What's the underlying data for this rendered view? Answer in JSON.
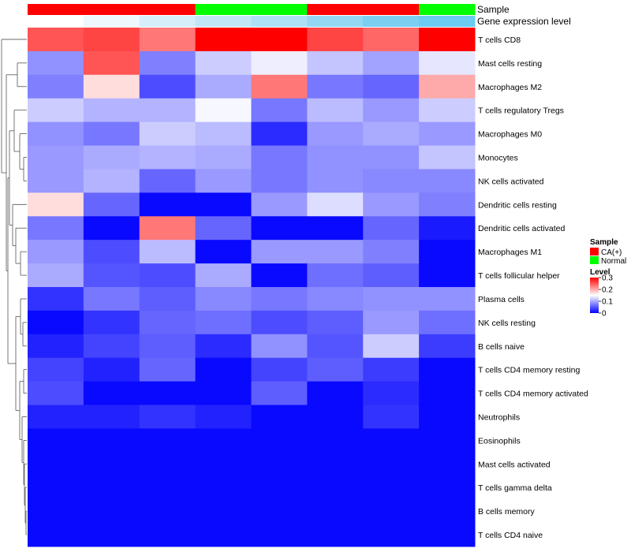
{
  "chart_data": {
    "type": "heatmap",
    "colors": {
      "low": "#0000ff",
      "mid": "#ffffff",
      "high": "#ff0000",
      "ca": "#ff0000",
      "normal": "#00ff00",
      "dendrogram": "#555555"
    },
    "annotation_rows": [
      {
        "label": "Sample",
        "colors": [
          "#ff0000",
          "#ff0000",
          "#ff0000",
          "#00ff00",
          "#00ff00",
          "#ff0000",
          "#ff0000",
          "#00ff00"
        ]
      },
      {
        "label": "Gene expression level",
        "colors": [
          "#ffffff",
          "#eef7fc",
          "#d6eef9",
          "#c1e6f6",
          "#aee0f5",
          "#93d7f3",
          "#7bcff1",
          "#6ccbf0"
        ]
      }
    ],
    "rows": [
      "T cells CD8",
      "Mast cells resting",
      "Macrophages M2",
      "T cells regulatory  Tregs",
      "Macrophages M0",
      "Monocytes",
      "NK cells activated",
      "Dendritic cells resting",
      "Dendritic cells activated",
      "Macrophages M1",
      "T cells follicular helper",
      "Plasma cells",
      "NK cells resting",
      "B cells naive",
      "T cells CD4 memory resting",
      "T cells CD4 memory activated",
      "Neutrophils",
      "Eosinophils",
      "Mast cells activated",
      "T cells gamma delta",
      "B cells memory",
      "T cells CD4 naive"
    ],
    "values": [
      [
        0.25,
        0.26,
        0.23,
        0.3,
        0.3,
        0.26,
        0.24,
        0.3
      ],
      [
        0.085,
        0.25,
        0.075,
        0.12,
        0.14,
        0.115,
        0.095,
        0.135
      ],
      [
        0.075,
        0.17,
        0.045,
        0.1,
        0.23,
        0.07,
        0.06,
        0.2
      ],
      [
        0.12,
        0.105,
        0.105,
        0.145,
        0.07,
        0.11,
        0.09,
        0.12
      ],
      [
        0.085,
        0.07,
        0.12,
        0.11,
        0.025,
        0.09,
        0.1,
        0.09
      ],
      [
        0.09,
        0.1,
        0.105,
        0.1,
        0.07,
        0.085,
        0.085,
        0.115
      ],
      [
        0.09,
        0.105,
        0.06,
        0.09,
        0.07,
        0.085,
        0.08,
        0.08
      ],
      [
        0.17,
        0.06,
        0.005,
        0.005,
        0.09,
        0.13,
        0.09,
        0.075
      ],
      [
        0.07,
        0.005,
        0.23,
        0.06,
        0.005,
        0.005,
        0.06,
        0.015
      ],
      [
        0.09,
        0.045,
        0.11,
        0.005,
        0.09,
        0.09,
        0.075,
        0.005
      ],
      [
        0.1,
        0.05,
        0.045,
        0.1,
        0.005,
        0.065,
        0.055,
        0.005
      ],
      [
        0.03,
        0.07,
        0.055,
        0.08,
        0.07,
        0.08,
        0.085,
        0.085
      ],
      [
        0.005,
        0.03,
        0.06,
        0.065,
        0.045,
        0.055,
        0.09,
        0.065
      ],
      [
        0.02,
        0.04,
        0.055,
        0.025,
        0.085,
        0.05,
        0.12,
        0.035
      ],
      [
        0.04,
        0.02,
        0.06,
        0.005,
        0.04,
        0.055,
        0.035,
        0.005
      ],
      [
        0.045,
        0.005,
        0.005,
        0.005,
        0.055,
        0.005,
        0.025,
        0.005
      ],
      [
        0.02,
        0.02,
        0.03,
        0.02,
        0.005,
        0.005,
        0.03,
        0.005
      ],
      [
        0.005,
        0.005,
        0.005,
        0.005,
        0.005,
        0.005,
        0.005,
        0.005
      ],
      [
        0.005,
        0.005,
        0.005,
        0.005,
        0.005,
        0.005,
        0.005,
        0.005
      ],
      [
        0.005,
        0.005,
        0.005,
        0.005,
        0.005,
        0.005,
        0.005,
        0.005
      ],
      [
        0.005,
        0.005,
        0.005,
        0.005,
        0.005,
        0.005,
        0.005,
        0.005
      ],
      [
        0.005,
        0.005,
        0.005,
        0.005,
        0.005,
        0.005,
        0.005,
        0.005
      ]
    ],
    "color_range": [
      0,
      0.3
    ],
    "legend": {
      "sample_title": "Sample",
      "sample_items": [
        {
          "label": "CA(+)",
          "color": "#ff0000"
        },
        {
          "label": "Normal",
          "color": "#00ff00"
        }
      ],
      "level_title": "Level",
      "level_ticks": [
        {
          "value": 0.3,
          "label": "0.3"
        },
        {
          "value": 0.2,
          "label": "0.2"
        },
        {
          "value": 0.1,
          "label": "0.1"
        },
        {
          "value": 0,
          "label": "0"
        }
      ]
    }
  }
}
